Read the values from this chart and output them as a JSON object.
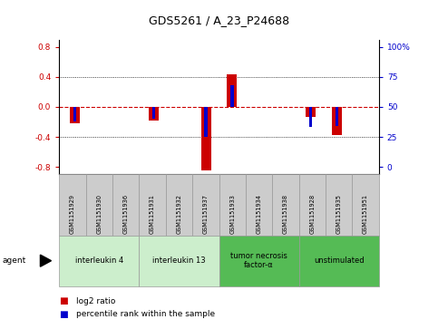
{
  "title": "GDS5261 / A_23_P24688",
  "samples": [
    "GSM1151929",
    "GSM1151930",
    "GSM1151936",
    "GSM1151931",
    "GSM1151932",
    "GSM1151937",
    "GSM1151933",
    "GSM1151934",
    "GSM1151938",
    "GSM1151928",
    "GSM1151935",
    "GSM1151951"
  ],
  "log2_ratios": [
    -0.22,
    0.0,
    0.0,
    -0.18,
    0.0,
    -0.85,
    0.43,
    0.0,
    0.0,
    -0.13,
    -0.38,
    0.0
  ],
  "percentile_ranks": [
    38,
    50,
    50,
    40,
    50,
    25,
    68,
    50,
    50,
    33,
    34,
    50
  ],
  "agents": [
    {
      "label": "interleukin 4",
      "indices": [
        0,
        1,
        2
      ],
      "color": "#cceecc"
    },
    {
      "label": "interleukin 13",
      "indices": [
        3,
        4,
        5
      ],
      "color": "#cceecc"
    },
    {
      "label": "tumor necrosis\nfactor-α",
      "indices": [
        6,
        7,
        8
      ],
      "color": "#55bb55"
    },
    {
      "label": "unstimulated",
      "indices": [
        9,
        10,
        11
      ],
      "color": "#55bb55"
    }
  ],
  "ylim": [
    -0.9,
    0.9
  ],
  "yticks_left": [
    -0.8,
    -0.4,
    0.0,
    0.4,
    0.8
  ],
  "yticks_right": [
    0,
    25,
    50,
    75,
    100
  ],
  "bar_color_log2": "#cc0000",
  "bar_color_pct": "#0000cc",
  "background_color": "#ffffff"
}
